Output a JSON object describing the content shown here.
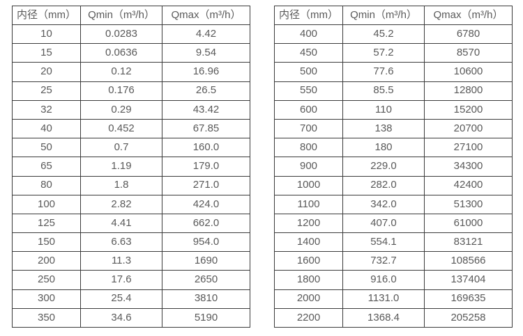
{
  "colors": {
    "border": "#3a3a3a",
    "text": "#595959",
    "background": "#ffffff"
  },
  "tables": [
    {
      "id": "diameter-flow-table-left",
      "headers": [
        "内径（mm）",
        "Qmin（m³/h）",
        "Qmax（m³/h）"
      ],
      "rows": [
        [
          "10",
          "0.0283",
          "4.42"
        ],
        [
          "15",
          "0.0636",
          "9.54"
        ],
        [
          "20",
          "0.12",
          "16.96"
        ],
        [
          "25",
          "0.176",
          "26.5"
        ],
        [
          "32",
          "0.29",
          "43.42"
        ],
        [
          "40",
          "0.452",
          "67.85"
        ],
        [
          "50",
          "0.7",
          "160.0"
        ],
        [
          "65",
          "1.19",
          "179.0"
        ],
        [
          "80",
          "1.8",
          "271.0"
        ],
        [
          "100",
          "2.82",
          "424.0"
        ],
        [
          "125",
          "4.41",
          "662.0"
        ],
        [
          "150",
          "6.63",
          "954.0"
        ],
        [
          "200",
          "11.3",
          "1690"
        ],
        [
          "250",
          "17.6",
          "2650"
        ],
        [
          "300",
          "25.4",
          "3810"
        ],
        [
          "350",
          "34.6",
          "5190"
        ]
      ]
    },
    {
      "id": "diameter-flow-table-right",
      "headers": [
        "内径（mm）",
        "Qmin（m³/h）",
        "Qmax（m³/h）"
      ],
      "rows": [
        [
          "400",
          "45.2",
          "6780"
        ],
        [
          "450",
          "57.2",
          "8570"
        ],
        [
          "500",
          "77.6",
          "10600"
        ],
        [
          "550",
          "85.5",
          "12800"
        ],
        [
          "600",
          "110",
          "15200"
        ],
        [
          "700",
          "138",
          "20700"
        ],
        [
          "800",
          "180",
          "27100"
        ],
        [
          "900",
          "229.0",
          "34300"
        ],
        [
          "1000",
          "282.0",
          "42400"
        ],
        [
          "1100",
          "342.0",
          "51300"
        ],
        [
          "1200",
          "407.0",
          "61000"
        ],
        [
          "1400",
          "554.1",
          "83121"
        ],
        [
          "1600",
          "732.7",
          "108566"
        ],
        [
          "1800",
          "916.0",
          "137404"
        ],
        [
          "2000",
          "1131.0",
          "169635"
        ],
        [
          "2200",
          "1368.4",
          "205258"
        ]
      ]
    }
  ]
}
